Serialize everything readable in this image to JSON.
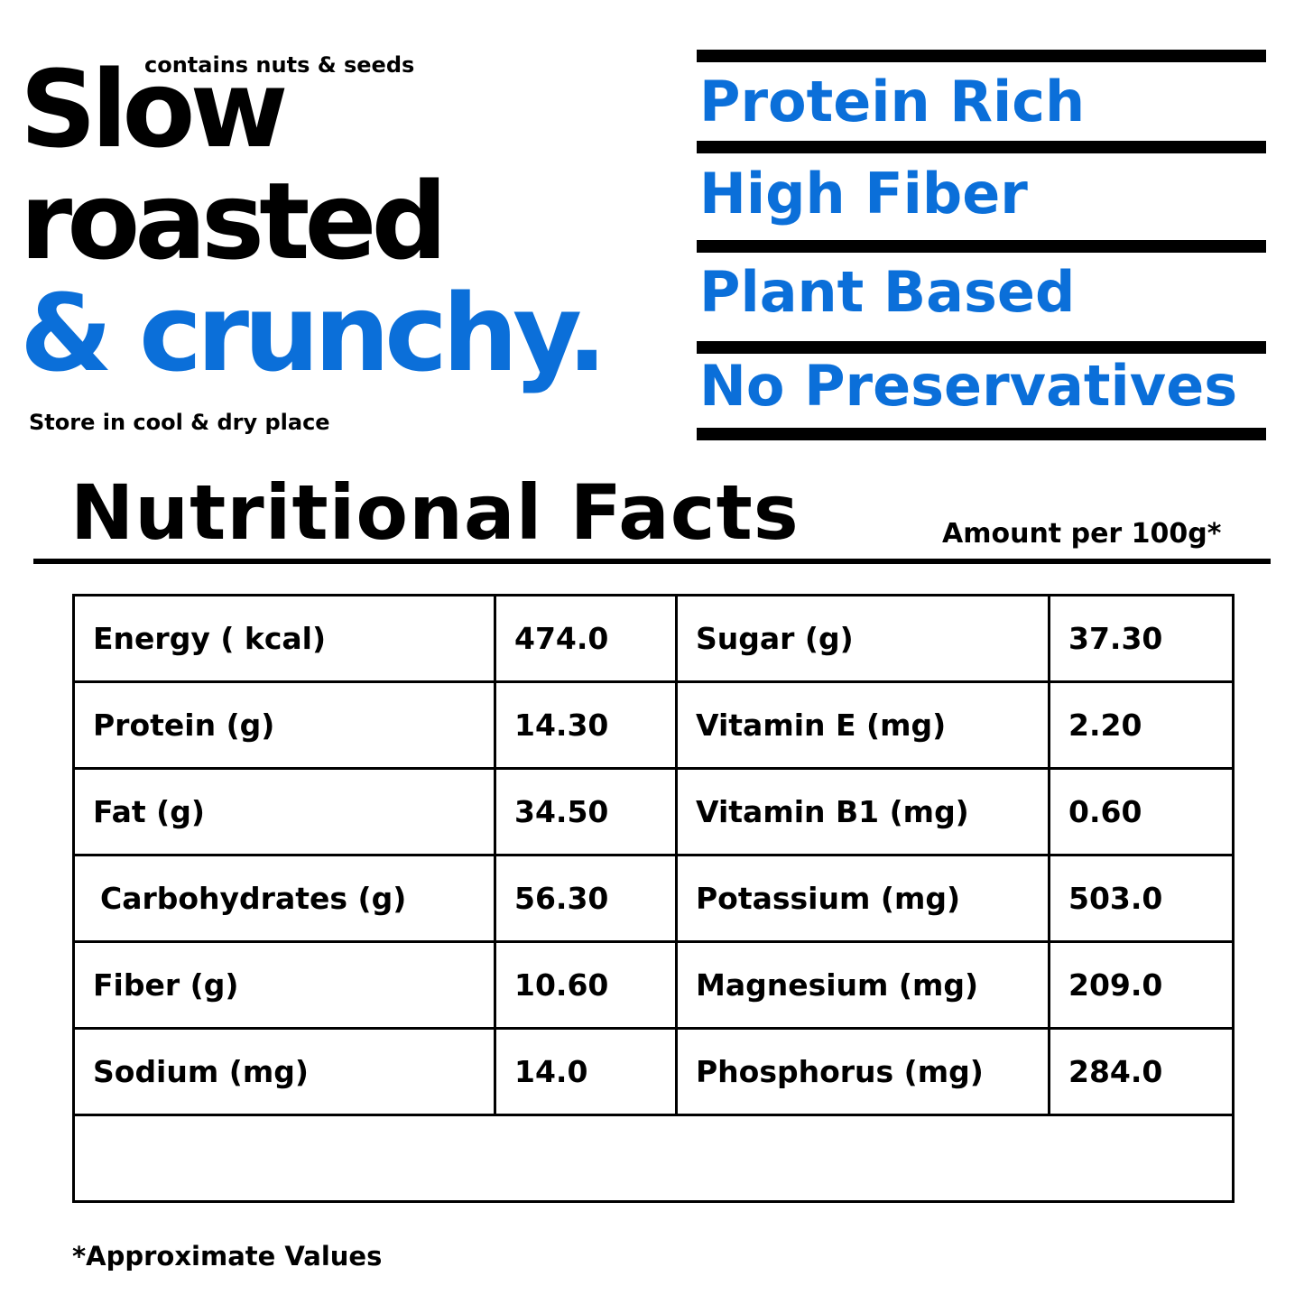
{
  "header": {
    "contains_note": "contains nuts & seeds",
    "headline_line1": "Slow",
    "headline_line2": "roasted",
    "headline_line3": "& crunchy.",
    "storage_note": "Store in cool & dry place"
  },
  "features": [
    {
      "label": "Protein Rich"
    },
    {
      "label": "High Fiber"
    },
    {
      "label": "Plant Based"
    },
    {
      "label": "No Preservatives"
    }
  ],
  "nutrition": {
    "title": "Nutritional Facts",
    "amount_note": "Amount per 100g*",
    "rows": [
      {
        "left_label": "Energy ( kcal)",
        "left_value": "474.0",
        "right_label": "Sugar (g)",
        "right_value": "37.30"
      },
      {
        "left_label": "Protein (g)",
        "left_value": "14.30",
        "right_label": "Vitamin E (mg)",
        "right_value": "2.20"
      },
      {
        "left_label": "Fat (g)",
        "left_value": "34.50",
        "right_label": "Vitamin B1 (mg)",
        "right_value": "0.60"
      },
      {
        "left_label": "Carbohydrates (g)",
        "left_value": "56.30",
        "right_label": "Potassium (mg)",
        "right_value": "503.0"
      },
      {
        "left_label": "Fiber (g)",
        "left_value": "10.60",
        "right_label": "Magnesium (mg)",
        "right_value": "209.0"
      },
      {
        "left_label": "Sodium (mg)",
        "left_value": "14.0",
        "right_label": "Phosphorus (mg)",
        "right_value": "284.0"
      }
    ],
    "footnote": "*Approximate Values"
  },
  "colors": {
    "accent_blue": "#0b6fd9",
    "text": "#000000",
    "background": "#ffffff"
  }
}
